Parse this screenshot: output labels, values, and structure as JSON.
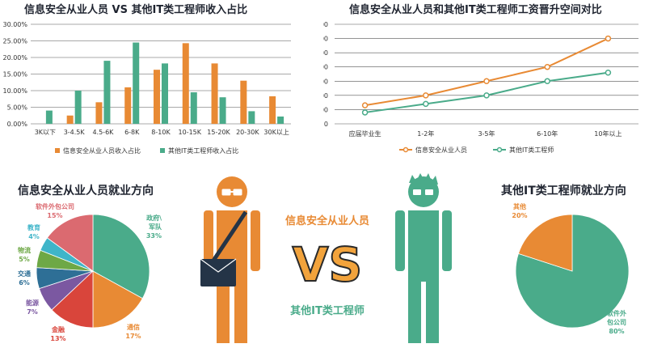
{
  "chart_data": [
    {
      "type": "bar",
      "title": "信息安全从业人员 VS 其他IT类工程师收入占比",
      "categories": [
        "3K以下",
        "3-4.5K",
        "4.5-6K",
        "6-8K",
        "8-10K",
        "10-15K",
        "15-20K",
        "20-30K",
        "30K以上"
      ],
      "series": [
        {
          "name": "信息安全从业人员收入占比",
          "values": [
            0.0,
            2.5,
            6.5,
            11.0,
            16.3,
            24.3,
            18.2,
            13.0,
            8.3
          ]
        },
        {
          "name": "其他IT类工程师收入占比",
          "values": [
            4.0,
            10.0,
            19.0,
            24.5,
            18.2,
            9.5,
            8.0,
            3.8,
            2.2
          ]
        }
      ],
      "ylim": [
        0,
        30
      ],
      "yticks": [
        "0.00%",
        "5.00%",
        "10.00%",
        "15.00%",
        "20.00%",
        "25.00%",
        "30.00%"
      ],
      "colors": [
        "#e88a34",
        "#4aab8a"
      ]
    },
    {
      "type": "line",
      "title": "信息安全从业人员和其他IT类工程师工资晋升空间对比",
      "categories": [
        "应届毕业生",
        "1-2年",
        "3-5年",
        "6-10年",
        "10年以上"
      ],
      "series": [
        {
          "name": "信息安全从业人员",
          "values": [
            6500,
            10000,
            15000,
            20000,
            30000
          ]
        },
        {
          "name": "其他IT类工程师",
          "values": [
            4000,
            7000,
            10000,
            15000,
            18000
          ]
        }
      ],
      "ylim": [
        0,
        35000
      ],
      "yticks": [
        "0",
        "5000",
        "10000",
        "15000",
        "20000",
        "25000",
        "30000",
        "35000"
      ],
      "colors": [
        "#e88a34",
        "#4aab8a"
      ]
    },
    {
      "type": "pie",
      "title": "信息安全从业人员就业方向",
      "slices": [
        {
          "label": "政府\\军队",
          "pct": "33%",
          "value": 33,
          "color": "#4aab8a"
        },
        {
          "label": "通信",
          "pct": "17%",
          "value": 17,
          "color": "#e88a34"
        },
        {
          "label": "金融",
          "pct": "13%",
          "value": 13,
          "color": "#d9453b"
        },
        {
          "label": "能源",
          "pct": "7%",
          "value": 7,
          "color": "#7b58a1"
        },
        {
          "label": "交通",
          "pct": "6%",
          "value": 6,
          "color": "#2e6f96"
        },
        {
          "label": "物流",
          "pct": "5%",
          "value": 5,
          "color": "#6ea846"
        },
        {
          "label": "教育",
          "pct": "4%",
          "value": 4,
          "color": "#3fb5c9"
        },
        {
          "label": "软件外包公司",
          "pct": "15%",
          "value": 15,
          "color": "#db6a70"
        }
      ]
    },
    {
      "type": "pie",
      "title": "其他IT类工程师就业方向",
      "slices": [
        {
          "label": "软件外包公司",
          "pct": "80%",
          "value": 80,
          "color": "#4aab8a"
        },
        {
          "label": "其他",
          "pct": "20%",
          "value": 20,
          "color": "#e88a34"
        }
      ]
    }
  ],
  "center": {
    "label_security": "信息安全从业人员",
    "vs": "VS",
    "label_it": "其他IT类工程师"
  }
}
